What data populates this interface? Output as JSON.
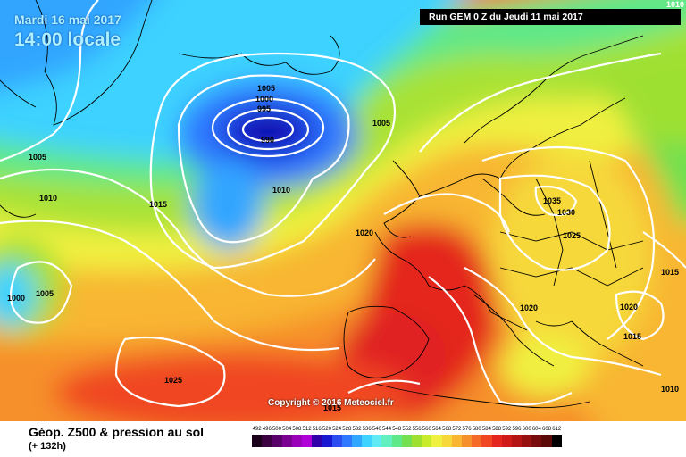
{
  "header": {
    "date": "Mardi 16 mai 2017",
    "time": "14:00 locale",
    "run": "Run GEM 0 Z du Jeudi 11 mai 2017",
    "corner_value": "1010"
  },
  "copyright": "Copyright © 2016 Meteociel.fr",
  "footer": {
    "title": "Géop. Z500 & pression au sol",
    "lead": "(+ 132h)"
  },
  "isobars": [
    {
      "id": "iso-1005-a",
      "value": "1005"
    },
    {
      "id": "iso-1000-low",
      "value": "1000"
    },
    {
      "id": "iso-995",
      "value": "995"
    },
    {
      "id": "iso-990",
      "value": "990"
    },
    {
      "id": "iso-1005-b",
      "value": "1005"
    },
    {
      "id": "iso-1005-w",
      "value": "1005"
    },
    {
      "id": "iso-1010-w",
      "value": "1010"
    },
    {
      "id": "iso-1010-c",
      "value": "1010"
    },
    {
      "id": "iso-1015-c",
      "value": "1015"
    },
    {
      "id": "iso-1020-c",
      "value": "1020"
    },
    {
      "id": "iso-1035",
      "value": "1035"
    },
    {
      "id": "iso-1030",
      "value": "1030"
    },
    {
      "id": "iso-1025-e",
      "value": "1025"
    },
    {
      "id": "iso-1015-e",
      "value": "1015"
    },
    {
      "id": "iso-1020-e",
      "value": "1020"
    },
    {
      "id": "iso-1020-e2",
      "value": "1020"
    },
    {
      "id": "iso-1015-e2",
      "value": "1015"
    },
    {
      "id": "iso-1010-e",
      "value": "1010"
    },
    {
      "id": "iso-1000-w",
      "value": "1000"
    },
    {
      "id": "iso-1005-w2",
      "value": "1005"
    },
    {
      "id": "iso-1025-s",
      "value": "1025"
    },
    {
      "id": "iso-1015-s",
      "value": "1015"
    }
  ],
  "legend": {
    "values": [
      "492",
      "496",
      "500",
      "504",
      "508",
      "512",
      "516",
      "520",
      "524",
      "528",
      "532",
      "536",
      "540",
      "544",
      "548",
      "552",
      "556",
      "560",
      "564",
      "568",
      "572",
      "576",
      "580",
      "584",
      "588",
      "592",
      "596",
      "600",
      "604",
      "608",
      "612"
    ],
    "colors": [
      "#1a0018",
      "#3c0040",
      "#5a006a",
      "#7a0092",
      "#9a00b8",
      "#b000d8",
      "#3000a8",
      "#1818d0",
      "#2a4cf0",
      "#2e78ff",
      "#30a6ff",
      "#3ed2ff",
      "#60eaf4",
      "#62f0c0",
      "#5ee888",
      "#72e050",
      "#9ee030",
      "#c8ec2c",
      "#f0f040",
      "#f6d83a",
      "#f8b632",
      "#f6902c",
      "#f46a26",
      "#f04622",
      "#e4261e",
      "#d01a1a",
      "#b41414",
      "#961010",
      "#780c0c",
      "#5a0808",
      "#000000"
    ]
  },
  "colors": {
    "isobar": "#ffffff",
    "coast": "#000000"
  }
}
